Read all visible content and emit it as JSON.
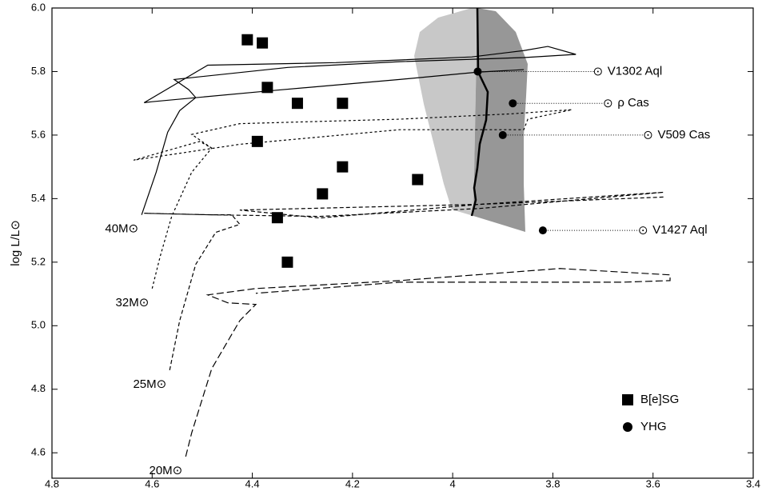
{
  "chart_data": {
    "type": "scatter",
    "ylabel": "log L/L⊙",
    "xlim": [
      4.8,
      3.4
    ],
    "ylim": [
      4.52,
      6.0
    ],
    "xticks": [
      4.8,
      4.6,
      4.4,
      4.2,
      4,
      3.8,
      3.6,
      3.4
    ],
    "yticks": [
      4.6,
      4.8,
      {
        "value": 5.0,
        "label": "5.0"
      },
      5.2,
      5.4,
      5.6,
      5.8,
      {
        "value": 6.0,
        "label": "6.0"
      }
    ],
    "legend": "lower right",
    "series": [
      {
        "name": "B[e]SG",
        "color": "#000000",
        "marker": "square",
        "x": [
          4.41,
          4.38,
          4.37,
          4.31,
          4.22,
          4.39,
          4.22,
          4.07,
          4.26,
          4.35,
          4.33
        ],
        "y": [
          5.9,
          5.89,
          5.75,
          5.7,
          5.7,
          5.58,
          5.5,
          5.46,
          5.415,
          5.34,
          5.2
        ]
      },
      {
        "name": "YHG",
        "color": "#000000",
        "marker": "circle",
        "x": [
          3.95,
          3.88,
          3.9,
          3.82
        ],
        "y": [
          5.8,
          5.7,
          5.6,
          5.3
        ]
      }
    ],
    "annotations": [
      {
        "text": "V1302 Aql",
        "x": 3.71
      },
      {
        "text": "ρ Cas",
        "x": 3.69
      },
      {
        "text": "V509 Cas",
        "x": 3.61
      },
      {
        "text": "V1427 Aql",
        "x": 3.62
      }
    ],
    "tracks": [
      {
        "name": "40M⊙",
        "dash": "solid",
        "x": [
          4.621,
          4.592,
          4.569,
          4.545,
          4.513,
          4.527,
          4.556,
          4.329,
          4.106,
          3.858,
          3.754,
          3.81,
          3.858,
          3.962,
          4.233,
          4.489,
          4.616,
          4.6,
          4.361,
          4.106,
          3.951,
          3.858
        ],
        "y": [
          5.349,
          5.483,
          5.609,
          5.677,
          5.718,
          5.743,
          5.775,
          5.813,
          5.831,
          5.844,
          5.854,
          5.879,
          5.866,
          5.846,
          5.828,
          5.82,
          5.702,
          5.705,
          5.74,
          5.775,
          5.798,
          5.806
        ]
      },
      {
        "name": "32M⊙",
        "dash": "dotted",
        "x": [
          4.6,
          4.584,
          4.561,
          4.521,
          4.481,
          4.505,
          4.637,
          4.425,
          4.106,
          3.858,
          3.85,
          3.762,
          3.882,
          4.106,
          4.425,
          4.521,
          4.481
        ],
        "y": [
          5.117,
          5.218,
          5.344,
          5.483,
          5.559,
          5.58,
          5.521,
          5.571,
          5.617,
          5.617,
          5.65,
          5.68,
          5.667,
          5.65,
          5.636,
          5.602,
          5.559
        ]
      },
      {
        "name": "25M⊙",
        "dash": "dashed",
        "x": [
          4.565,
          4.545,
          4.513,
          4.473,
          4.425,
          4.441,
          4.481,
          4.616,
          4.481,
          4.265,
          3.946,
          3.579,
          3.946,
          4.425,
          4.265,
          3.946,
          3.579
        ],
        "y": [
          4.86,
          5.016,
          5.193,
          5.294,
          5.319,
          5.349,
          5.349,
          5.354,
          5.349,
          5.344,
          5.369,
          5.42,
          5.382,
          5.364,
          5.339,
          5.382,
          5.405
        ]
      },
      {
        "name": "20M⊙",
        "dash": "longdash",
        "x": [
          4.533,
          4.521,
          4.481,
          4.425,
          4.393,
          4.449,
          4.489,
          4.393,
          4.106,
          3.786,
          3.566,
          3.566,
          3.659,
          4.106,
          4.393
        ],
        "y": [
          4.588,
          4.663,
          4.865,
          5.016,
          5.067,
          5.072,
          5.097,
          5.117,
          5.142,
          5.18,
          5.16,
          5.142,
          5.137,
          5.137,
          5.102
        ]
      }
    ]
  }
}
